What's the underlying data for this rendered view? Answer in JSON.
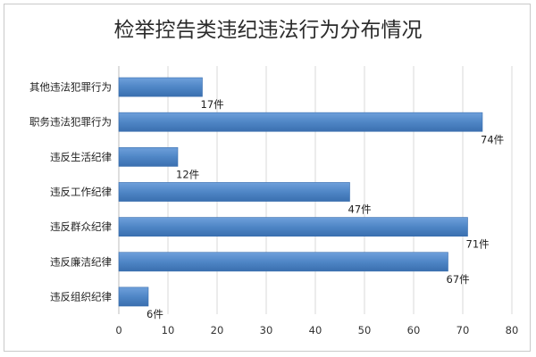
{
  "chart_data": {
    "type": "bar",
    "orientation": "horizontal",
    "title": "检举控告类违纪违法行为分布情况",
    "categories": [
      "其他违法犯罪行为",
      "职务违法犯罪行为",
      "违反生活纪律",
      "违反工作纪律",
      "违反群众纪律",
      "违反廉洁纪律",
      "违反组织纪律"
    ],
    "values": [
      17,
      74,
      12,
      47,
      71,
      67,
      6
    ],
    "data_labels": [
      "17件",
      "74件",
      "12件",
      "47件",
      "71件",
      "67件",
      "6件"
    ],
    "xlim": [
      0,
      80
    ],
    "x_ticks": [
      "0",
      "10",
      "20",
      "30",
      "40",
      "50",
      "60",
      "70",
      "80"
    ],
    "xlabel": "",
    "ylabel": "",
    "grid": "vertical",
    "legend": "none",
    "bar_color": "#4f86c6"
  }
}
